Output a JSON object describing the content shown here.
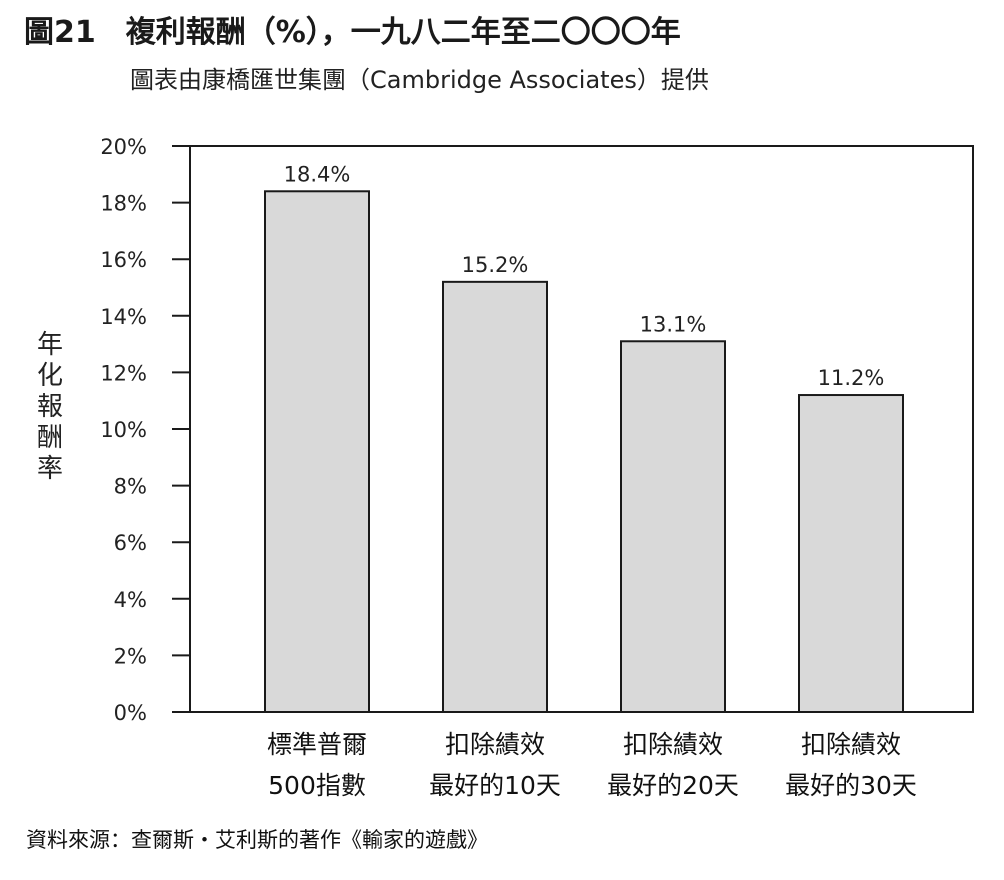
{
  "figure": {
    "number": "圖21",
    "title": "複利報酬（%），一九八二年至二〇〇〇年",
    "subtitle": "圖表由康橋匯世集團（Cambridge Associates）提供",
    "source": "資料來源：查爾斯・艾利斯的著作《輸家的遊戲》"
  },
  "chart_data": {
    "type": "bar",
    "title": "複利報酬（%），一九八二年至二〇〇〇年",
    "xlabel": "",
    "ylabel": "年化報酬率",
    "ylim": [
      0,
      20
    ],
    "yticks": [
      0,
      2,
      4,
      6,
      8,
      10,
      12,
      14,
      16,
      18,
      20
    ],
    "ytick_labels": [
      "0%",
      "2%",
      "4%",
      "6%",
      "8%",
      "10%",
      "12%",
      "14%",
      "16%",
      "18%",
      "20%"
    ],
    "categories": [
      [
        "標準普爾",
        "500指數"
      ],
      [
        "扣除績效",
        "最好的10天"
      ],
      [
        "扣除績效",
        "最好的20天"
      ],
      [
        "扣除績效",
        "最好的30天"
      ]
    ],
    "values": [
      18.4,
      15.2,
      13.1,
      11.2
    ],
    "value_labels": [
      "18.4%",
      "15.2%",
      "13.1%",
      "11.2%"
    ],
    "grid": false,
    "legend": "none",
    "colors": {
      "bar_fill": "#d9d9d9",
      "bar_stroke": "#1a1a1a",
      "frame": "#1a1a1a"
    }
  }
}
